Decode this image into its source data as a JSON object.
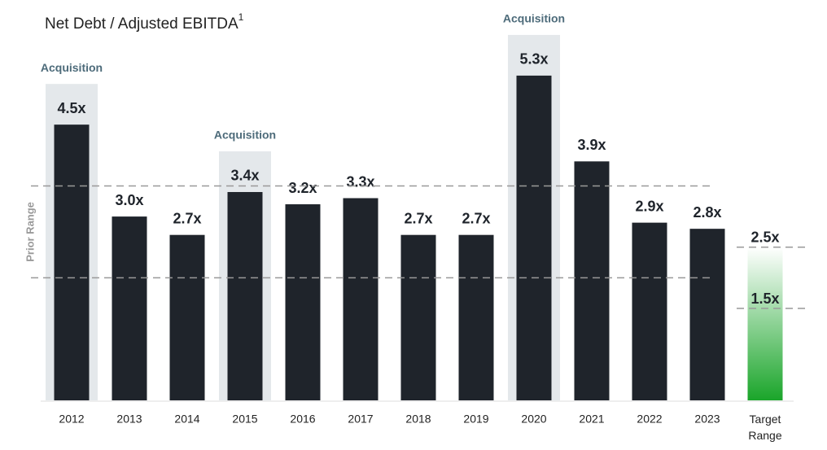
{
  "chart_data": {
    "type": "bar",
    "title": "Net Debt / Adjusted EBITDA",
    "title_superscript": "1",
    "categories": [
      "2012",
      "2013",
      "2014",
      "2015",
      "2016",
      "2017",
      "2018",
      "2019",
      "2020",
      "2021",
      "2022",
      "2023",
      "Target Range"
    ],
    "values": [
      4.5,
      3.0,
      2.7,
      3.4,
      3.2,
      3.3,
      2.7,
      2.7,
      5.3,
      3.9,
      2.9,
      2.8,
      null
    ],
    "value_labels": [
      "4.5x",
      "3.0x",
      "2.7x",
      "3.4x",
      "3.2x",
      "3.3x",
      "2.7x",
      "2.7x",
      "5.3x",
      "3.9x",
      "2.9x",
      "2.8x",
      null
    ],
    "color": "#1f242b",
    "ylim": [
      0,
      6
    ],
    "annotations": [
      {
        "category": "2012",
        "text": "Acquisition"
      },
      {
        "category": "2015",
        "text": "Acquisition"
      },
      {
        "category": "2020",
        "text": "Acquisition"
      }
    ],
    "prior_range": {
      "label": "Prior Range",
      "low": 2.0,
      "high": 3.5
    },
    "target_range": {
      "category": "Target Range",
      "low": 1.5,
      "high": 2.5,
      "low_label": "1.5x",
      "high_label": "2.5x",
      "color": "#1aa52a"
    }
  }
}
